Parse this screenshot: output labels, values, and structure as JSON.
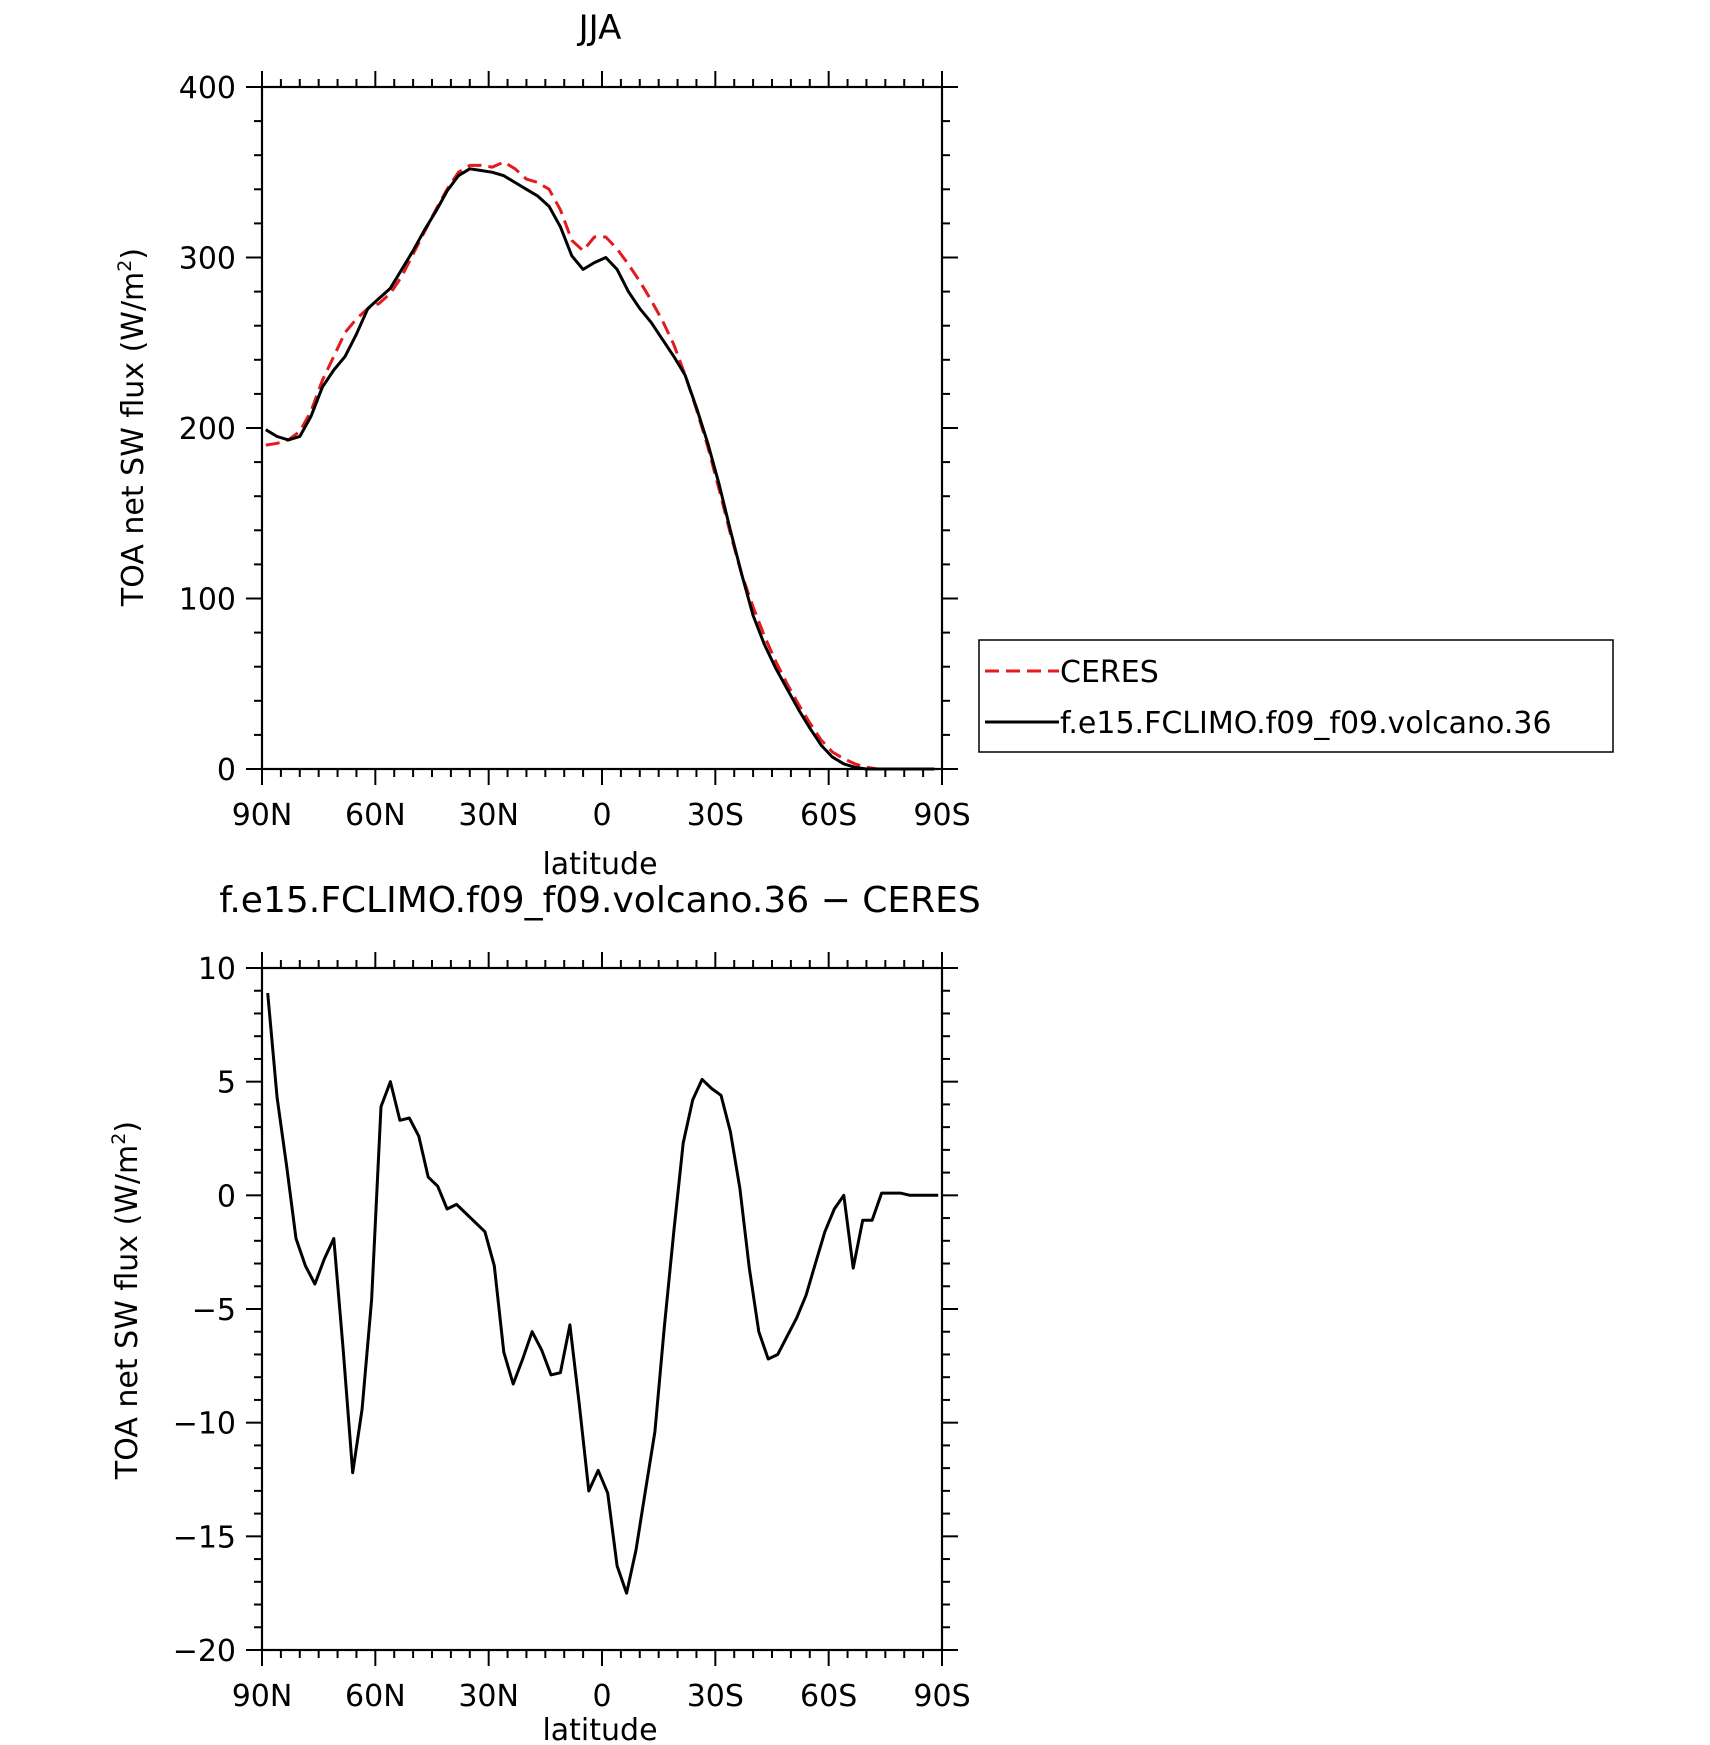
{
  "chart_data": [
    {
      "type": "line",
      "title": "JJA",
      "xlabel": "latitude",
      "ylabel_main": "TOA net SW flux (W/m",
      "ylabel_sup": "2",
      "ylabel_close": ")",
      "xlim": [
        90,
        -90
      ],
      "ylim": [
        0,
        400
      ],
      "xticks": [
        90,
        60,
        30,
        0,
        -30,
        -60,
        -90
      ],
      "xtick_labels": [
        "90N",
        "60N",
        "30N",
        "0",
        "30S",
        "60S",
        "90S"
      ],
      "yticks": [
        0,
        100,
        200,
        300,
        400
      ],
      "ytick_labels": [
        "0",
        "100",
        "200",
        "300",
        "400"
      ],
      "grid": false,
      "legend_position": "right",
      "series": [
        {
          "name": "CERES",
          "color": "#e41a1c",
          "dash": "dashed",
          "x": [
            89,
            86,
            83,
            80,
            77,
            74,
            71,
            68,
            65,
            62,
            59,
            56,
            53,
            50,
            47,
            44,
            41,
            38,
            35,
            32,
            29,
            26,
            23,
            20,
            17,
            14,
            11,
            8,
            5,
            2,
            -1,
            -4,
            -7,
            -10,
            -13,
            -16,
            -19,
            -22,
            -25,
            -28,
            -31,
            -34,
            -37,
            -40,
            -43,
            -46,
            -49,
            -52,
            -55,
            -58,
            -61,
            -64,
            -67,
            -70,
            -73,
            -76,
            -79,
            -82,
            -85,
            -88
          ],
          "y": [
            190,
            191,
            193,
            198,
            210,
            228,
            242,
            256,
            264,
            270,
            273,
            279,
            289,
            302,
            315,
            328,
            340,
            350,
            354,
            354,
            353,
            356,
            352,
            346,
            344,
            340,
            328,
            310,
            304,
            312,
            312,
            305,
            296,
            286,
            275,
            263,
            249,
            231,
            211,
            189,
            164,
            138,
            114,
            95,
            78,
            63,
            50,
            38,
            27,
            17,
            10,
            6,
            3,
            1,
            0,
            0,
            0,
            0,
            0,
            0
          ]
        },
        {
          "name": "f.e15.FCLIMO.f09_f09.volcano.36",
          "color": "#000000",
          "dash": "solid",
          "x": [
            89,
            86,
            83,
            80,
            77,
            74,
            71,
            68,
            65,
            62,
            59,
            56,
            53,
            50,
            47,
            44,
            41,
            38,
            35,
            32,
            29,
            26,
            23,
            20,
            17,
            14,
            11,
            8,
            5,
            2,
            -1,
            -4,
            -7,
            -10,
            -13,
            -16,
            -19,
            -22,
            -25,
            -28,
            -31,
            -34,
            -37,
            -40,
            -43,
            -46,
            -49,
            -52,
            -55,
            -58,
            -61,
            -64,
            -67,
            -70,
            -73,
            -76,
            -79,
            -82,
            -85,
            -88
          ],
          "y": [
            199,
            195,
            193,
            195,
            207,
            224,
            234,
            242,
            255,
            270,
            276,
            282,
            293,
            304,
            316,
            327,
            339,
            348,
            352,
            351,
            350,
            348,
            344,
            340,
            336,
            330,
            318,
            301,
            293,
            297,
            300,
            293,
            280,
            270,
            262,
            252,
            242,
            231,
            212,
            191,
            167,
            140,
            114,
            90,
            73,
            59,
            47,
            35,
            24,
            14,
            7,
            3,
            1,
            0,
            0,
            0,
            0,
            0,
            0,
            0
          ]
        }
      ]
    },
    {
      "type": "line",
      "title": "f.e15.FCLIMO.f09_f09.volcano.36 − CERES",
      "xlabel": "latitude",
      "ylabel_main": "TOA net SW flux (W/m",
      "ylabel_sup": "2",
      "ylabel_close": ")",
      "xlim": [
        90,
        -90
      ],
      "ylim": [
        -20,
        10
      ],
      "xticks": [
        90,
        60,
        30,
        0,
        -30,
        -60,
        -90
      ],
      "xtick_labels": [
        "90N",
        "60N",
        "30N",
        "0",
        "30S",
        "60S",
        "90S"
      ],
      "yticks": [
        10,
        5,
        0,
        -5,
        -10,
        -15,
        -20
      ],
      "ytick_labels": [
        "10",
        "5",
        "0",
        "−5",
        "−10",
        "−15",
        "−20"
      ],
      "grid": false,
      "series": [
        {
          "color": "#000000",
          "dash": "solid",
          "x": [
            88.5,
            86,
            83.5,
            81,
            78.5,
            76,
            73.5,
            71,
            68.5,
            66,
            63.5,
            61,
            58.5,
            56,
            53.5,
            51,
            48.5,
            46,
            43.5,
            41,
            38.5,
            36,
            33.5,
            31,
            28.5,
            26,
            23.5,
            21,
            18.5,
            16,
            13.5,
            11,
            8.5,
            6,
            3.5,
            1,
            -1.5,
            -4,
            -6.5,
            -9,
            -11.5,
            -14,
            -16.5,
            -19,
            -21.5,
            -24,
            -26.5,
            -29,
            -31.5,
            -34,
            -36.5,
            -39,
            -41.5,
            -44,
            -46.5,
            -49,
            -51.5,
            -54,
            -56.5,
            -59,
            -61.5,
            -64,
            -66.5,
            -69,
            -71.5,
            -74,
            -76.5,
            -79,
            -81.5,
            -84,
            -86.5,
            -89
          ],
          "y": [
            8.9,
            4.3,
            1.3,
            -1.9,
            -3.1,
            -3.9,
            -2.8,
            -1.9,
            -6.8,
            -12.2,
            -9.4,
            -4.6,
            3.9,
            5.0,
            3.3,
            3.4,
            2.6,
            0.8,
            0.4,
            -0.6,
            -0.4,
            -0.8,
            -1.2,
            -1.6,
            -3.1,
            -6.9,
            -8.3,
            -7.2,
            -6.0,
            -6.8,
            -7.9,
            -7.8,
            -5.7,
            -9.2,
            -13.0,
            -12.1,
            -13.1,
            -16.3,
            -17.5,
            -15.6,
            -13.0,
            -10.4,
            -5.8,
            -1.6,
            2.3,
            4.2,
            5.1,
            4.7,
            4.4,
            2.8,
            0.3,
            -3.2,
            -6.0,
            -7.2,
            -7.0,
            -6.2,
            -5.4,
            -4.4,
            -3.0,
            -1.6,
            -0.6,
            0.0,
            -3.2,
            -1.1,
            -1.1,
            0.1,
            0.1,
            0.1,
            0.0,
            0.0,
            0.0,
            0.0
          ]
        }
      ]
    }
  ]
}
